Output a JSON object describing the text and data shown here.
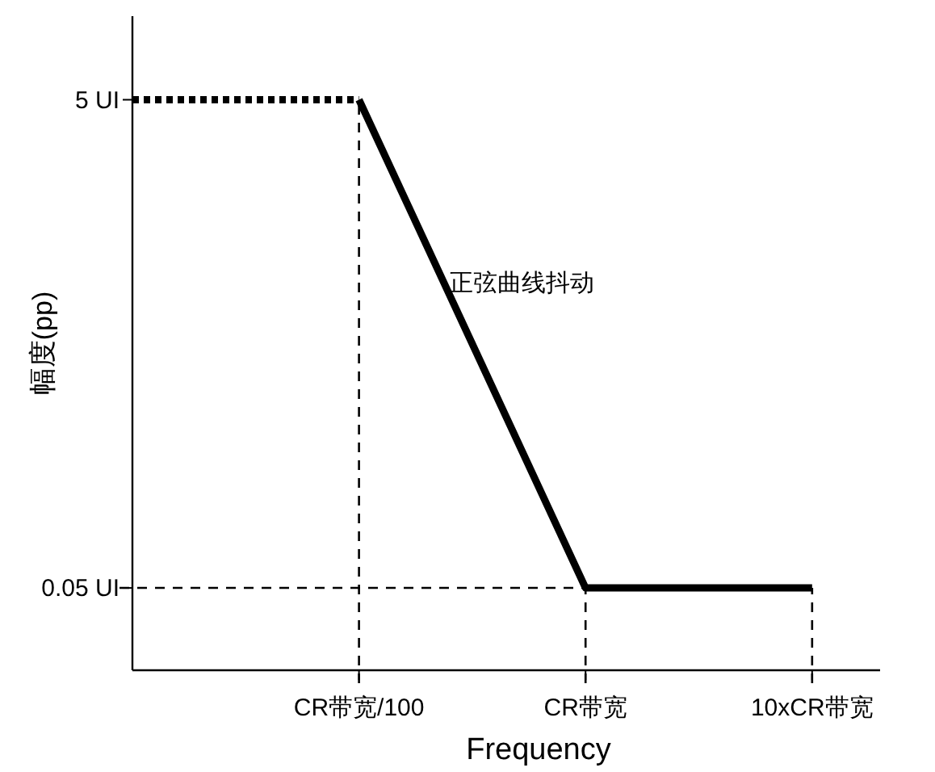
{
  "chart_data": {
    "type": "line",
    "xlabel": "Frequency",
    "ylabel": "幅度(pp)",
    "log": "y",
    "categories": [
      null,
      "CR带宽/100",
      "CR带宽",
      "10xCR带宽"
    ],
    "ylim": [
      0.023,
      11
    ],
    "yticks": [
      {
        "value": 5,
        "label": "5 UI"
      },
      {
        "value": 0.05,
        "label": "0.05 UI"
      }
    ],
    "series": [
      {
        "color": "#000000",
        "line_style": "dotted",
        "values": [
          5,
          5,
          null,
          null
        ]
      },
      {
        "color": "#000000",
        "line_style": "solid",
        "values": [
          null,
          5,
          0.05,
          0.05
        ]
      }
    ],
    "ref_lines": [
      {
        "axis": "x",
        "value": "CR带宽/100",
        "line_style": "dashed",
        "color": "#000000"
      },
      {
        "axis": "x",
        "value": "CR带宽",
        "line_style": "dashed",
        "color": "#000000"
      },
      {
        "axis": "x",
        "value": "10xCR带宽",
        "line_style": "dashed",
        "color": "#000000"
      },
      {
        "axis": "y",
        "value": 0.05,
        "line_style": "dashed",
        "color": "#000000"
      }
    ],
    "annotations": [
      "正弦曲线抖动"
    ],
    "grid": false
  }
}
